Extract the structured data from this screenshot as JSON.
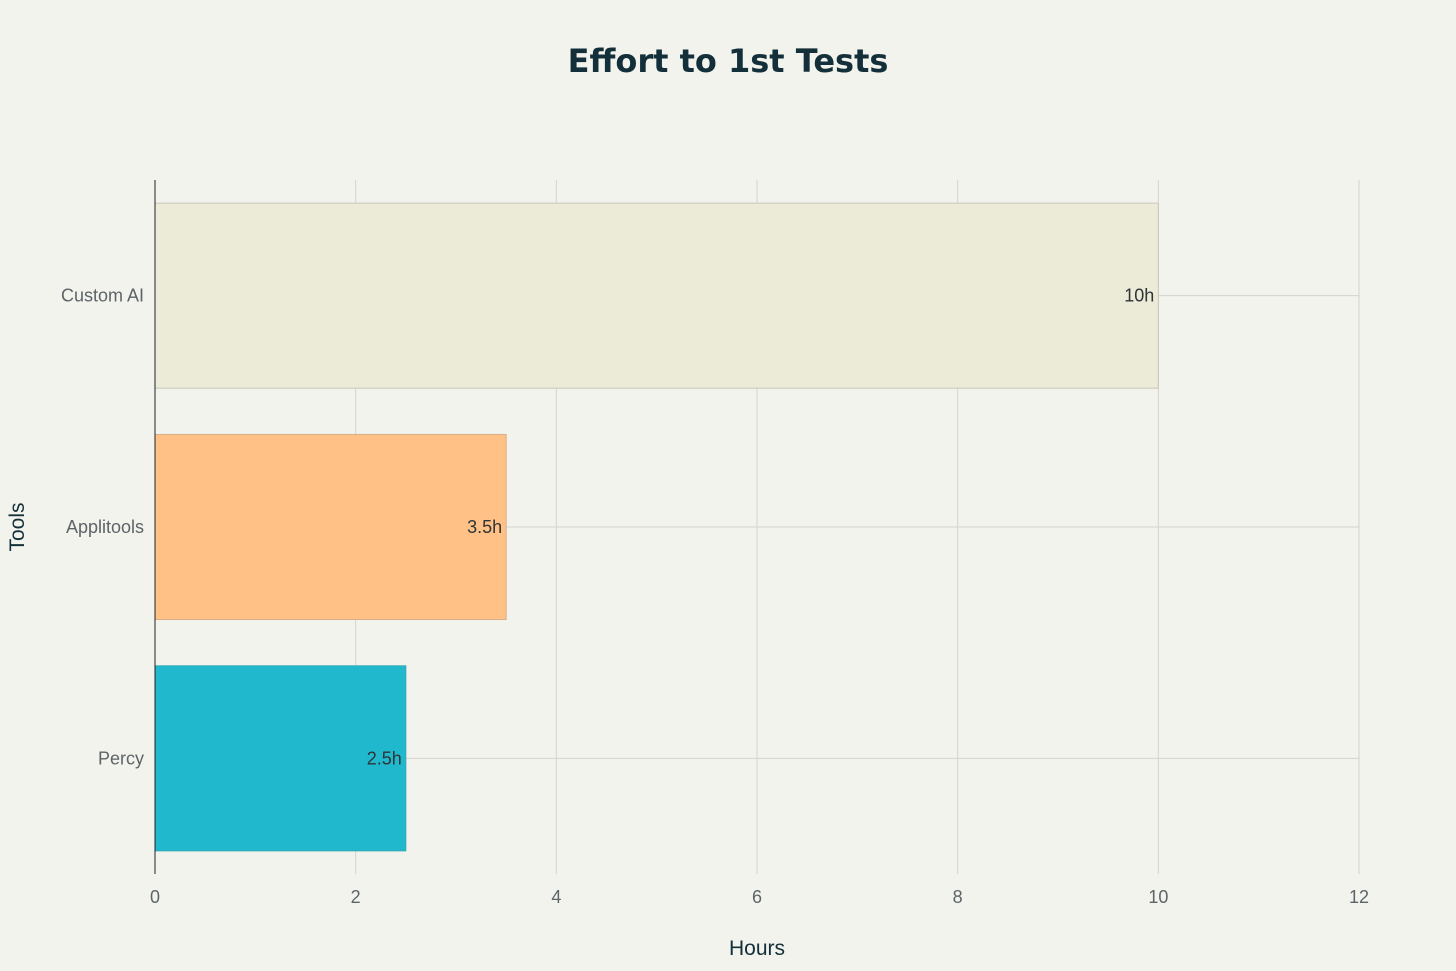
{
  "chart_data": {
    "type": "bar",
    "orientation": "horizontal",
    "title": "Effort to 1st Tests",
    "xlabel": "Hours",
    "ylabel": "Tools",
    "categories": [
      "Custom AI",
      "Applitools",
      "Percy"
    ],
    "values": [
      10,
      3.5,
      2.5
    ],
    "data_labels": [
      "10h",
      "3.5h",
      "2.5h"
    ],
    "colors": [
      "#ecebd8",
      "#ffc185",
      "#1fb8cd"
    ],
    "border_colors": [
      "#c9c8b8",
      "#d8b08a",
      "#35a9b8"
    ],
    "xlim": [
      0,
      12
    ],
    "x_ticks": [
      "0",
      "2",
      "4",
      "6",
      "8",
      "10",
      "12"
    ],
    "grid": true,
    "legend": "none"
  }
}
